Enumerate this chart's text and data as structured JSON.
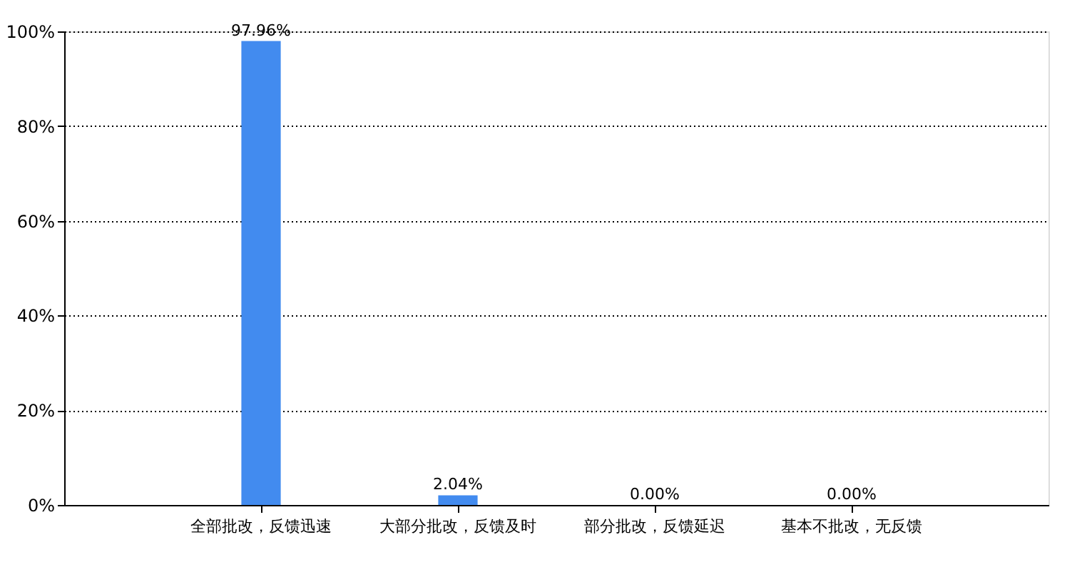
{
  "chart_data": {
    "type": "bar",
    "categories": [
      "全部批改，反馈迅速",
      "大部分批改，反馈及时",
      "部分批改，反馈延迟",
      "基本不批改，无反馈"
    ],
    "values": [
      97.96,
      2.04,
      0,
      0
    ],
    "value_labels": [
      "97.96%",
      "2.04%",
      "0.00%",
      "0.00%"
    ],
    "color": "#428bef",
    "ylim": [
      0,
      100
    ],
    "yticks": [
      {
        "value": 0,
        "label": "0%"
      },
      {
        "value": 20,
        "label": "20%"
      },
      {
        "value": 40,
        "label": "40%"
      },
      {
        "value": 60,
        "label": "60%"
      },
      {
        "value": 80,
        "label": "80%"
      },
      {
        "value": 100,
        "label": "100%"
      }
    ],
    "grid": "y"
  }
}
